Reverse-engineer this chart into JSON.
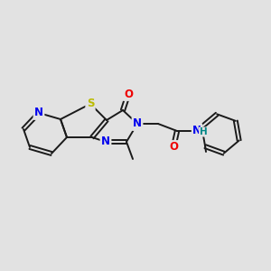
{
  "background_color": "#e2e2e2",
  "bond_color": "#1a1a1a",
  "atom_colors": {
    "N": "#0000ee",
    "O": "#ee0000",
    "S": "#bbbb00",
    "H": "#008888",
    "C": "#1a1a1a"
  },
  "figsize": [
    3.0,
    3.0
  ],
  "dpi": 100
}
